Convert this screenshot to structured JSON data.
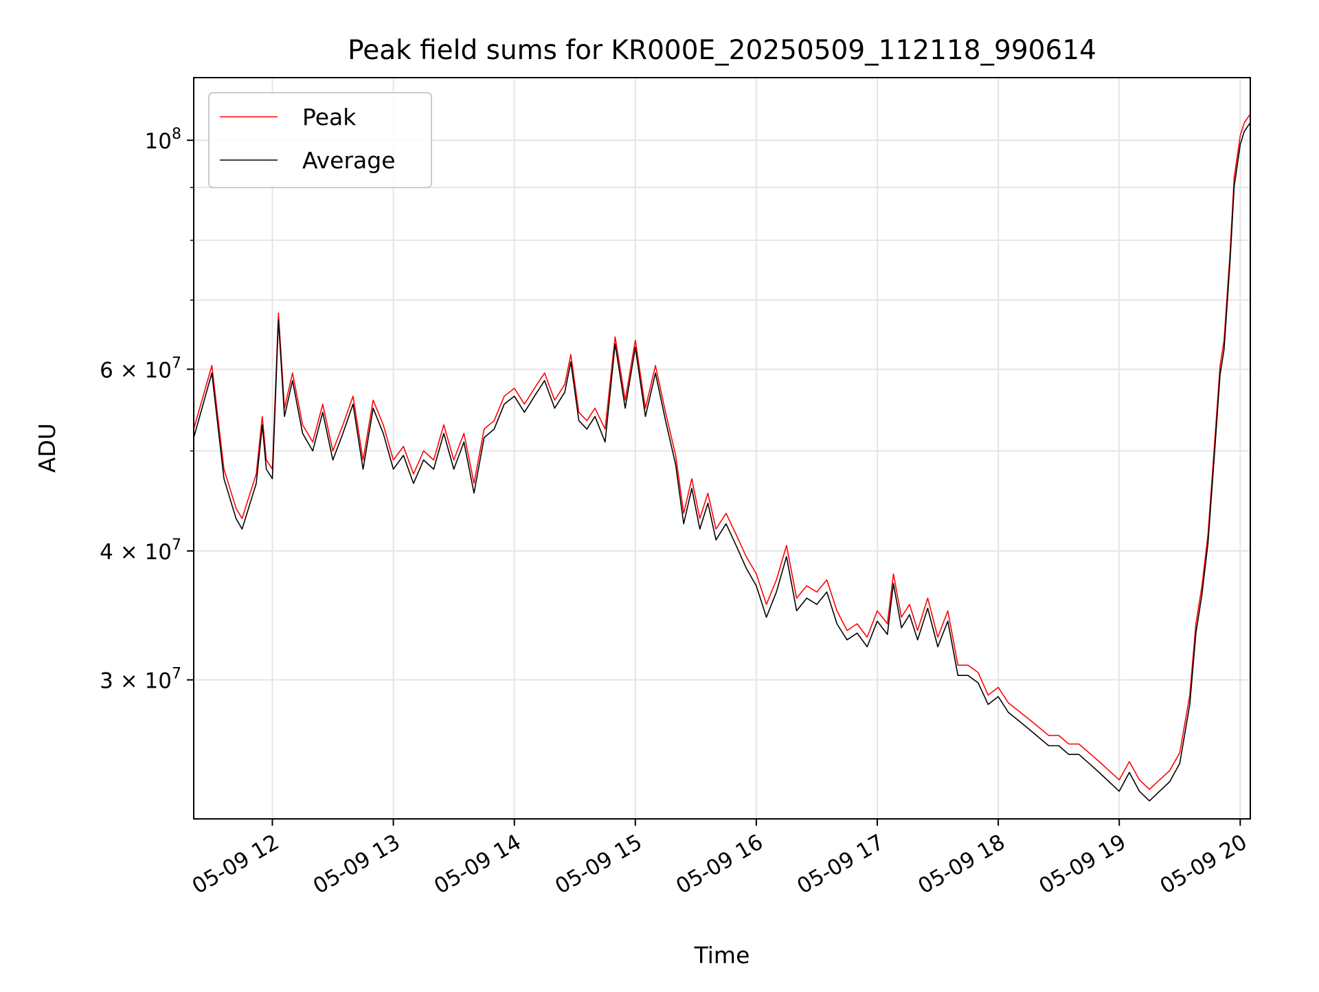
{
  "chart_data": {
    "type": "line",
    "title": "Peak field sums for KR000E_20250509_112118_990614",
    "xlabel": "Time",
    "ylabel": "ADU",
    "x_axis": {
      "kind": "datetime",
      "range": [
        "2025-05-09 11:21",
        "2025-05-09 20:05"
      ],
      "ticks": [
        "2025-05-09 12:00",
        "2025-05-09 13:00",
        "2025-05-09 14:00",
        "2025-05-09 15:00",
        "2025-05-09 16:00",
        "2025-05-09 17:00",
        "2025-05-09 18:00",
        "2025-05-09 19:00",
        "2025-05-09 20:00"
      ],
      "tick_labels": [
        "05-09 12",
        "05-09 13",
        "05-09 14",
        "05-09 15",
        "05-09 16",
        "05-09 17",
        "05-09 18",
        "05-09 19",
        "05-09 20"
      ]
    },
    "y_axis": {
      "scale": "log",
      "range": [
        22000000,
        115000000
      ],
      "major_ticks": [
        {
          "value": 30000000,
          "mantissa": "3",
          "exponent": "7"
        },
        {
          "value": 40000000,
          "mantissa": "4",
          "exponent": "7"
        },
        {
          "value": 60000000,
          "mantissa": "6",
          "exponent": "7"
        },
        {
          "value": 100000000,
          "mantissa": "",
          "exponent": "8"
        }
      ],
      "minor_ticks": [
        50000000,
        70000000,
        80000000,
        90000000
      ]
    },
    "tick_base": "10",
    "tick_times_sign": "×",
    "grid": true,
    "legend_position": "upper-left",
    "series": [
      {
        "name": "Peak",
        "color": "#ff0000",
        "points": [
          [
            "2025-05-09 11:21",
            52500000
          ],
          [
            "2025-05-09 11:30",
            60500000
          ],
          [
            "2025-05-09 11:36",
            48000000
          ],
          [
            "2025-05-09 11:42",
            44000000
          ],
          [
            "2025-05-09 11:45",
            43000000
          ],
          [
            "2025-05-09 11:52",
            47500000
          ],
          [
            "2025-05-09 11:55",
            54000000
          ],
          [
            "2025-05-09 11:57",
            49000000
          ],
          [
            "2025-05-09 12:00",
            48000000
          ],
          [
            "2025-05-09 12:03",
            68000000
          ],
          [
            "2025-05-09 12:06",
            55000000
          ],
          [
            "2025-05-09 12:10",
            59500000
          ],
          [
            "2025-05-09 12:15",
            53000000
          ],
          [
            "2025-05-09 12:20",
            51000000
          ],
          [
            "2025-05-09 12:25",
            55500000
          ],
          [
            "2025-05-09 12:30",
            50000000
          ],
          [
            "2025-05-09 12:35",
            53000000
          ],
          [
            "2025-05-09 12:40",
            56500000
          ],
          [
            "2025-05-09 12:45",
            49000000
          ],
          [
            "2025-05-09 12:50",
            56000000
          ],
          [
            "2025-05-09 12:55",
            53000000
          ],
          [
            "2025-05-09 13:00",
            49000000
          ],
          [
            "2025-05-09 13:05",
            50500000
          ],
          [
            "2025-05-09 13:10",
            47500000
          ],
          [
            "2025-05-09 13:15",
            50000000
          ],
          [
            "2025-05-09 13:20",
            49000000
          ],
          [
            "2025-05-09 13:25",
            53000000
          ],
          [
            "2025-05-09 13:30",
            49000000
          ],
          [
            "2025-05-09 13:35",
            52000000
          ],
          [
            "2025-05-09 13:40",
            46500000
          ],
          [
            "2025-05-09 13:45",
            52500000
          ],
          [
            "2025-05-09 13:50",
            53500000
          ],
          [
            "2025-05-09 13:55",
            56500000
          ],
          [
            "2025-05-09 14:00",
            57500000
          ],
          [
            "2025-05-09 14:05",
            55500000
          ],
          [
            "2025-05-09 14:10",
            57500000
          ],
          [
            "2025-05-09 14:15",
            59500000
          ],
          [
            "2025-05-09 14:20",
            56000000
          ],
          [
            "2025-05-09 14:25",
            58000000
          ],
          [
            "2025-05-09 14:28",
            62000000
          ],
          [
            "2025-05-09 14:32",
            54500000
          ],
          [
            "2025-05-09 14:36",
            53500000
          ],
          [
            "2025-05-09 14:40",
            55000000
          ],
          [
            "2025-05-09 14:45",
            52500000
          ],
          [
            "2025-05-09 14:50",
            64500000
          ],
          [
            "2025-05-09 14:55",
            56000000
          ],
          [
            "2025-05-09 15:00",
            64000000
          ],
          [
            "2025-05-09 15:05",
            55000000
          ],
          [
            "2025-05-09 15:10",
            60500000
          ],
          [
            "2025-05-09 15:15",
            54500000
          ],
          [
            "2025-05-09 15:20",
            49500000
          ],
          [
            "2025-05-09 15:24",
            43500000
          ],
          [
            "2025-05-09 15:28",
            47000000
          ],
          [
            "2025-05-09 15:32",
            43000000
          ],
          [
            "2025-05-09 15:36",
            45500000
          ],
          [
            "2025-05-09 15:40",
            42000000
          ],
          [
            "2025-05-09 15:45",
            43500000
          ],
          [
            "2025-05-09 15:50",
            41500000
          ],
          [
            "2025-05-09 15:55",
            39500000
          ],
          [
            "2025-05-09 16:00",
            38000000
          ],
          [
            "2025-05-09 16:05",
            35500000
          ],
          [
            "2025-05-09 16:10",
            37500000
          ],
          [
            "2025-05-09 16:15",
            40500000
          ],
          [
            "2025-05-09 16:20",
            36000000
          ],
          [
            "2025-05-09 16:25",
            37000000
          ],
          [
            "2025-05-09 16:30",
            36500000
          ],
          [
            "2025-05-09 16:35",
            37500000
          ],
          [
            "2025-05-09 16:40",
            35000000
          ],
          [
            "2025-05-09 16:45",
            33500000
          ],
          [
            "2025-05-09 16:50",
            34000000
          ],
          [
            "2025-05-09 16:55",
            33000000
          ],
          [
            "2025-05-09 17:00",
            35000000
          ],
          [
            "2025-05-09 17:05",
            34000000
          ],
          [
            "2025-05-09 17:08",
            38000000
          ],
          [
            "2025-05-09 17:12",
            34500000
          ],
          [
            "2025-05-09 17:16",
            35500000
          ],
          [
            "2025-05-09 17:20",
            33500000
          ],
          [
            "2025-05-09 17:25",
            36000000
          ],
          [
            "2025-05-09 17:30",
            33000000
          ],
          [
            "2025-05-09 17:35",
            35000000
          ],
          [
            "2025-05-09 17:40",
            31000000
          ],
          [
            "2025-05-09 17:45",
            31000000
          ],
          [
            "2025-05-09 17:50",
            30500000
          ],
          [
            "2025-05-09 17:55",
            29000000
          ],
          [
            "2025-05-09 18:00",
            29500000
          ],
          [
            "2025-05-09 18:05",
            28500000
          ],
          [
            "2025-05-09 18:10",
            28000000
          ],
          [
            "2025-05-09 18:15",
            27500000
          ],
          [
            "2025-05-09 18:20",
            27000000
          ],
          [
            "2025-05-09 18:25",
            26500000
          ],
          [
            "2025-05-09 18:30",
            26500000
          ],
          [
            "2025-05-09 18:35",
            26000000
          ],
          [
            "2025-05-09 18:40",
            26000000
          ],
          [
            "2025-05-09 18:45",
            25500000
          ],
          [
            "2025-05-09 18:50",
            25000000
          ],
          [
            "2025-05-09 18:55",
            24500000
          ],
          [
            "2025-05-09 19:00",
            24000000
          ],
          [
            "2025-05-09 19:05",
            25000000
          ],
          [
            "2025-05-09 19:10",
            24000000
          ],
          [
            "2025-05-09 19:15",
            23500000
          ],
          [
            "2025-05-09 19:20",
            24000000
          ],
          [
            "2025-05-09 19:25",
            24500000
          ],
          [
            "2025-05-09 19:30",
            25500000
          ],
          [
            "2025-05-09 19:35",
            29000000
          ],
          [
            "2025-05-09 19:38",
            34000000
          ],
          [
            "2025-05-09 19:41",
            37000000
          ],
          [
            "2025-05-09 19:44",
            41500000
          ],
          [
            "2025-05-09 19:47",
            50000000
          ],
          [
            "2025-05-09 19:50",
            60500000
          ],
          [
            "2025-05-09 19:52",
            64000000
          ],
          [
            "2025-05-09 19:55",
            78000000
          ],
          [
            "2025-05-09 19:57",
            92000000
          ],
          [
            "2025-05-09 20:00",
            101000000
          ],
          [
            "2025-05-09 20:02",
            104000000
          ],
          [
            "2025-05-09 20:05",
            106000000
          ]
        ]
      },
      {
        "name": "Average",
        "color": "#000000",
        "points": [
          [
            "2025-05-09 11:21",
            51500000
          ],
          [
            "2025-05-09 11:30",
            59500000
          ],
          [
            "2025-05-09 11:36",
            47000000
          ],
          [
            "2025-05-09 11:42",
            43000000
          ],
          [
            "2025-05-09 11:45",
            42000000
          ],
          [
            "2025-05-09 11:52",
            46500000
          ],
          [
            "2025-05-09 11:55",
            53000000
          ],
          [
            "2025-05-09 11:57",
            48000000
          ],
          [
            "2025-05-09 12:00",
            47000000
          ],
          [
            "2025-05-09 12:03",
            67000000
          ],
          [
            "2025-05-09 12:06",
            54000000
          ],
          [
            "2025-05-09 12:10",
            58500000
          ],
          [
            "2025-05-09 12:15",
            52000000
          ],
          [
            "2025-05-09 12:20",
            50000000
          ],
          [
            "2025-05-09 12:25",
            54500000
          ],
          [
            "2025-05-09 12:30",
            49000000
          ],
          [
            "2025-05-09 12:35",
            52000000
          ],
          [
            "2025-05-09 12:40",
            55500000
          ],
          [
            "2025-05-09 12:45",
            48000000
          ],
          [
            "2025-05-09 12:50",
            55000000
          ],
          [
            "2025-05-09 12:55",
            52000000
          ],
          [
            "2025-05-09 13:00",
            48000000
          ],
          [
            "2025-05-09 13:05",
            49500000
          ],
          [
            "2025-05-09 13:10",
            46500000
          ],
          [
            "2025-05-09 13:15",
            49000000
          ],
          [
            "2025-05-09 13:20",
            48000000
          ],
          [
            "2025-05-09 13:25",
            52000000
          ],
          [
            "2025-05-09 13:30",
            48000000
          ],
          [
            "2025-05-09 13:35",
            51000000
          ],
          [
            "2025-05-09 13:40",
            45500000
          ],
          [
            "2025-05-09 13:45",
            51500000
          ],
          [
            "2025-05-09 13:50",
            52500000
          ],
          [
            "2025-05-09 13:55",
            55500000
          ],
          [
            "2025-05-09 14:00",
            56500000
          ],
          [
            "2025-05-09 14:05",
            54500000
          ],
          [
            "2025-05-09 14:10",
            56500000
          ],
          [
            "2025-05-09 14:15",
            58500000
          ],
          [
            "2025-05-09 14:20",
            55000000
          ],
          [
            "2025-05-09 14:25",
            57000000
          ],
          [
            "2025-05-09 14:28",
            61000000
          ],
          [
            "2025-05-09 14:32",
            53500000
          ],
          [
            "2025-05-09 14:36",
            52500000
          ],
          [
            "2025-05-09 14:40",
            54000000
          ],
          [
            "2025-05-09 14:45",
            51000000
          ],
          [
            "2025-05-09 14:50",
            63500000
          ],
          [
            "2025-05-09 14:55",
            55000000
          ],
          [
            "2025-05-09 15:00",
            63000000
          ],
          [
            "2025-05-09 15:05",
            54000000
          ],
          [
            "2025-05-09 15:10",
            59500000
          ],
          [
            "2025-05-09 15:15",
            53500000
          ],
          [
            "2025-05-09 15:20",
            48500000
          ],
          [
            "2025-05-09 15:24",
            42500000
          ],
          [
            "2025-05-09 15:28",
            46000000
          ],
          [
            "2025-05-09 15:32",
            42000000
          ],
          [
            "2025-05-09 15:36",
            44500000
          ],
          [
            "2025-05-09 15:40",
            41000000
          ],
          [
            "2025-05-09 15:45",
            42500000
          ],
          [
            "2025-05-09 15:50",
            40500000
          ],
          [
            "2025-05-09 15:55",
            38500000
          ],
          [
            "2025-05-09 16:00",
            37000000
          ],
          [
            "2025-05-09 16:05",
            34500000
          ],
          [
            "2025-05-09 16:10",
            36500000
          ],
          [
            "2025-05-09 16:15",
            39500000
          ],
          [
            "2025-05-09 16:20",
            35000000
          ],
          [
            "2025-05-09 16:25",
            36000000
          ],
          [
            "2025-05-09 16:30",
            35500000
          ],
          [
            "2025-05-09 16:35",
            36500000
          ],
          [
            "2025-05-09 16:40",
            34000000
          ],
          [
            "2025-05-09 16:45",
            32800000
          ],
          [
            "2025-05-09 16:50",
            33300000
          ],
          [
            "2025-05-09 16:55",
            32300000
          ],
          [
            "2025-05-09 17:00",
            34200000
          ],
          [
            "2025-05-09 17:05",
            33200000
          ],
          [
            "2025-05-09 17:08",
            37200000
          ],
          [
            "2025-05-09 17:12",
            33700000
          ],
          [
            "2025-05-09 17:16",
            34700000
          ],
          [
            "2025-05-09 17:20",
            32800000
          ],
          [
            "2025-05-09 17:25",
            35200000
          ],
          [
            "2025-05-09 17:30",
            32300000
          ],
          [
            "2025-05-09 17:35",
            34200000
          ],
          [
            "2025-05-09 17:40",
            30300000
          ],
          [
            "2025-05-09 17:45",
            30300000
          ],
          [
            "2025-05-09 17:50",
            29800000
          ],
          [
            "2025-05-09 17:55",
            28400000
          ],
          [
            "2025-05-09 18:00",
            28900000
          ],
          [
            "2025-05-09 18:05",
            27900000
          ],
          [
            "2025-05-09 18:10",
            27400000
          ],
          [
            "2025-05-09 18:15",
            26900000
          ],
          [
            "2025-05-09 18:20",
            26400000
          ],
          [
            "2025-05-09 18:25",
            25900000
          ],
          [
            "2025-05-09 18:30",
            25900000
          ],
          [
            "2025-05-09 18:35",
            25400000
          ],
          [
            "2025-05-09 18:40",
            25400000
          ],
          [
            "2025-05-09 18:45",
            24900000
          ],
          [
            "2025-05-09 18:50",
            24400000
          ],
          [
            "2025-05-09 18:55",
            23900000
          ],
          [
            "2025-05-09 19:00",
            23400000
          ],
          [
            "2025-05-09 19:05",
            24400000
          ],
          [
            "2025-05-09 19:10",
            23400000
          ],
          [
            "2025-05-09 19:15",
            22900000
          ],
          [
            "2025-05-09 19:20",
            23400000
          ],
          [
            "2025-05-09 19:25",
            23900000
          ],
          [
            "2025-05-09 19:30",
            24900000
          ],
          [
            "2025-05-09 19:35",
            28400000
          ],
          [
            "2025-05-09 19:38",
            33300000
          ],
          [
            "2025-05-09 19:41",
            36300000
          ],
          [
            "2025-05-09 19:44",
            40700000
          ],
          [
            "2025-05-09 19:47",
            49000000
          ],
          [
            "2025-05-09 19:50",
            59300000
          ],
          [
            "2025-05-09 19:52",
            62700000
          ],
          [
            "2025-05-09 19:55",
            76500000
          ],
          [
            "2025-05-09 19:57",
            90200000
          ],
          [
            "2025-05-09 20:00",
            99000000
          ],
          [
            "2025-05-09 20:02",
            102000000
          ],
          [
            "2025-05-09 20:05",
            104000000
          ]
        ]
      }
    ]
  }
}
